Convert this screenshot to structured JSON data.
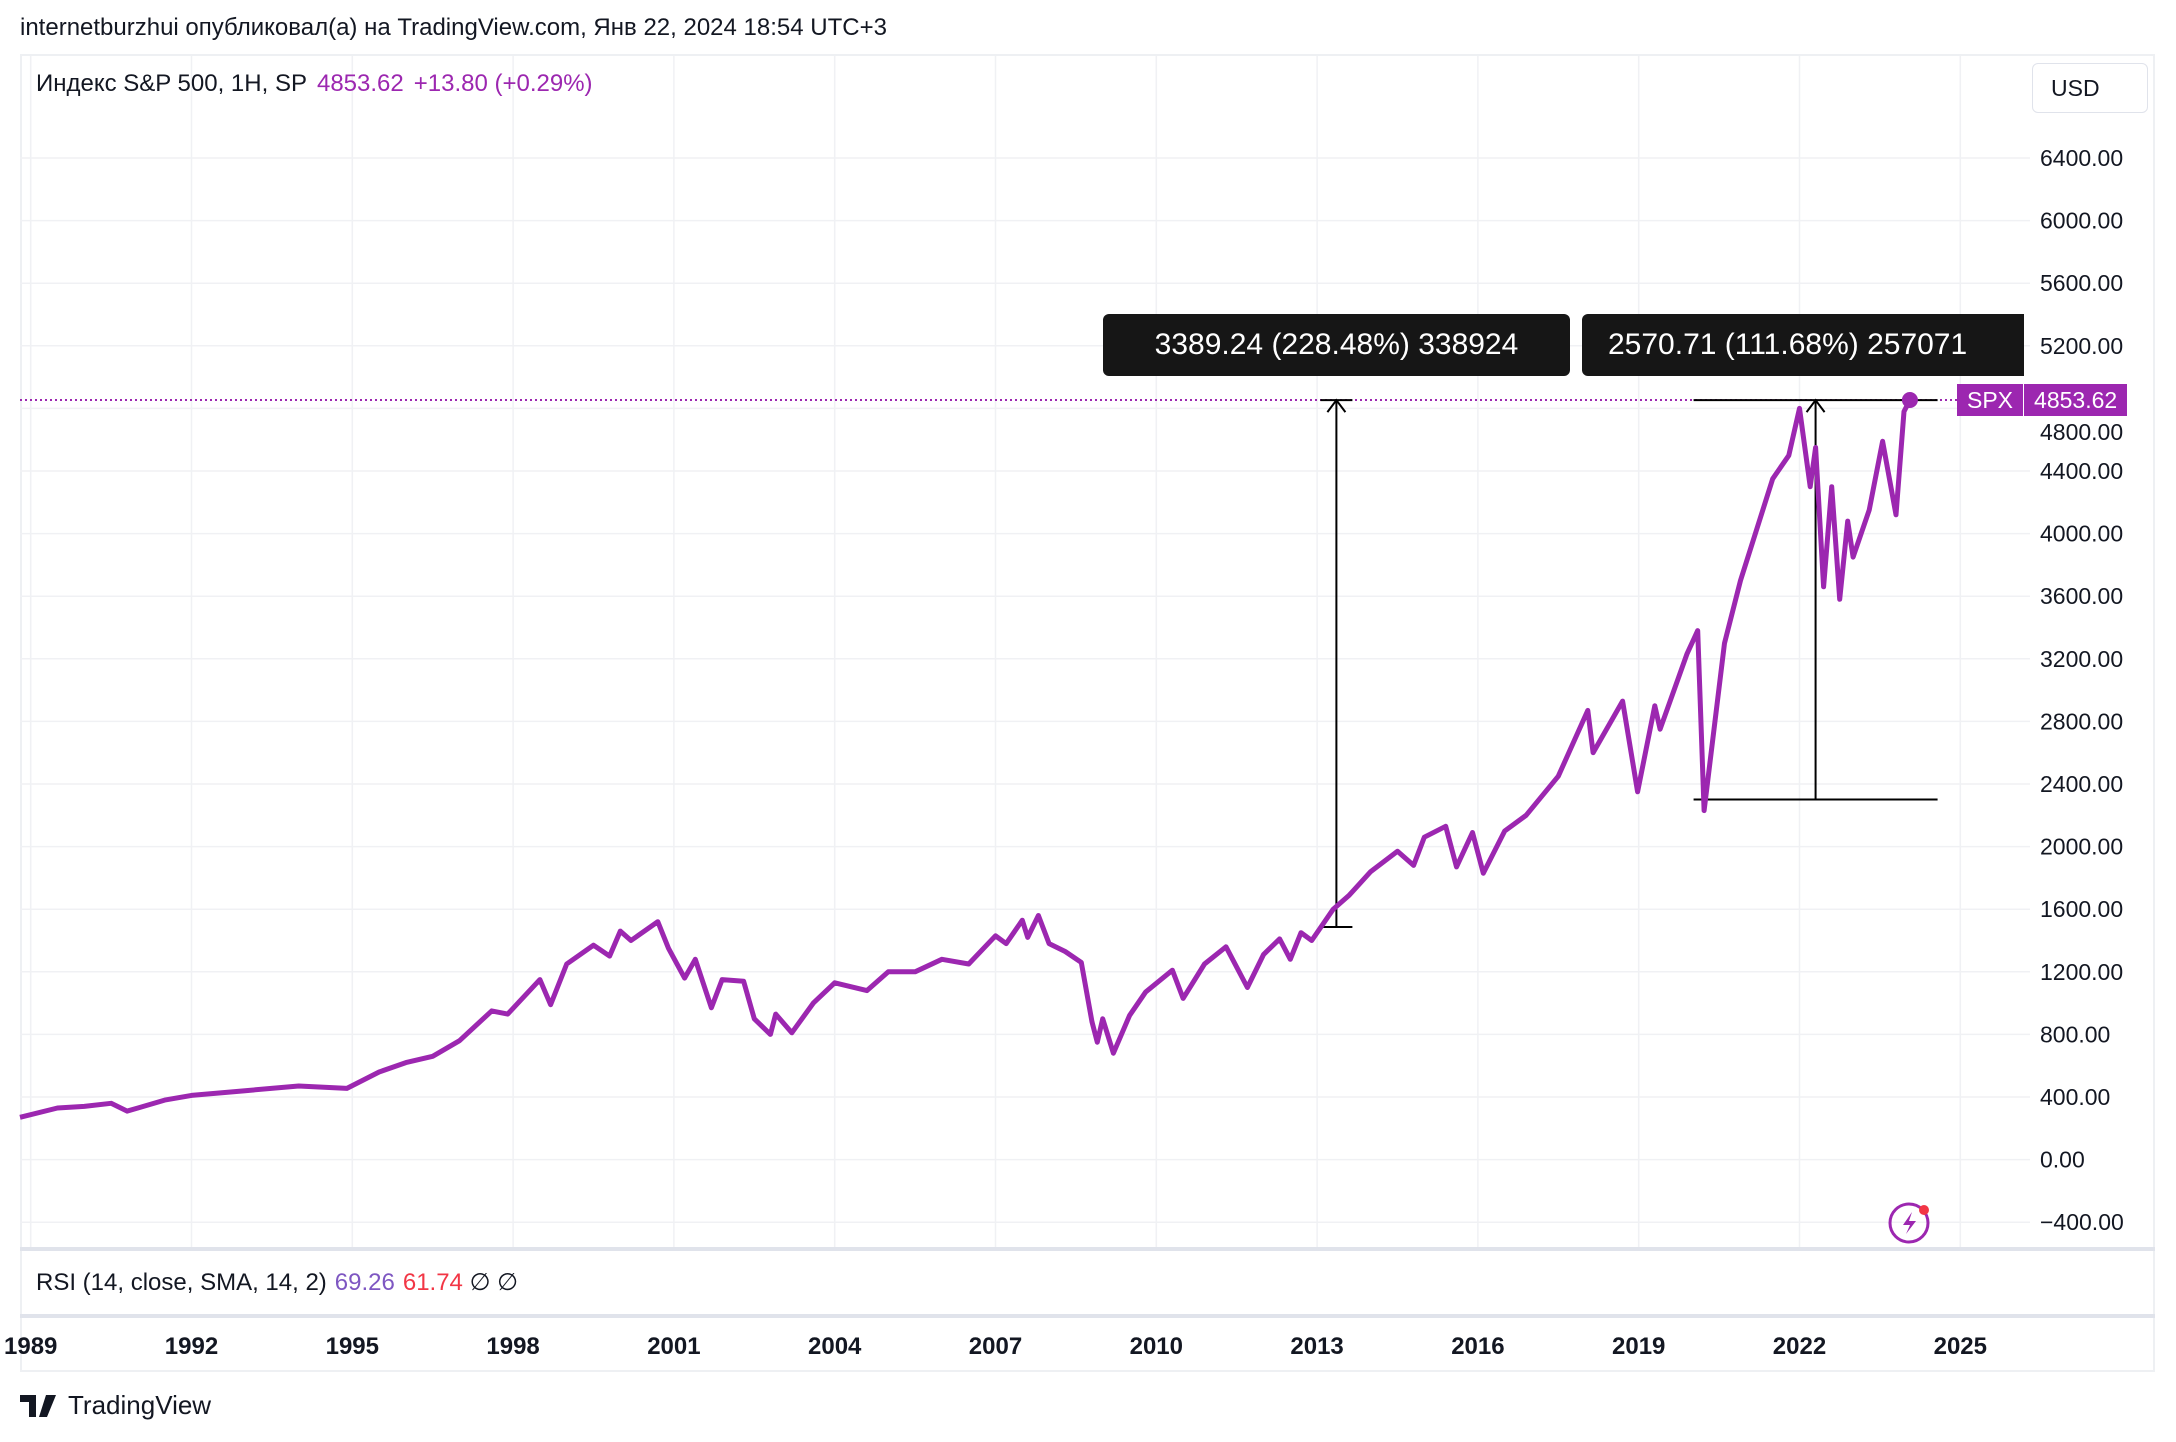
{
  "header": {
    "published": "internetburzhui опубликовал(а) на TradingView.com, Янв 22, 2024 18:54 UTC+3"
  },
  "legend": {
    "symbol": "Индекс S&P 500, 1H, SP",
    "price": "4853.62",
    "change": "+13.80 (+0.29%)"
  },
  "currency_button": "USD",
  "price_label": {
    "ticker": "SPX",
    "value": "4853.62"
  },
  "measures": [
    {
      "label": "3389.24 (228.48%) 338924"
    },
    {
      "label": "2570.71 (111.68%) 257071"
    }
  ],
  "rsi": {
    "title": "RSI (14, close, SMA, 14, 2)",
    "value": "69.26",
    "sma": "61.74",
    "n1": "∅",
    "n2": "∅"
  },
  "footer": {
    "brand": "TradingView"
  },
  "colors": {
    "series": "#9c27b0",
    "rsi": "#7e57c2",
    "rsi_sma": "#f23645"
  },
  "chart_data": {
    "type": "line",
    "title": "Индекс S&P 500, 1H, SP",
    "xlabel": "",
    "ylabel": "USD",
    "ylim": [
      -400,
      6400
    ],
    "y_ticks": [
      "6400.00",
      "6000.00",
      "5600.00",
      "5200.00",
      "4800.00",
      "4400.00",
      "4000.00",
      "3600.00",
      "3200.00",
      "2800.00",
      "2400.00",
      "2000.00",
      "1600.00",
      "1200.00",
      "800.00",
      "400.00",
      "0.00",
      "−400.00"
    ],
    "x_ticks": [
      "1989",
      "1992",
      "1995",
      "1998",
      "2001",
      "2004",
      "2007",
      "2010",
      "2013",
      "2016",
      "2019",
      "2022",
      "2025"
    ],
    "grid": true,
    "series": [
      {
        "name": "SPX",
        "x": [
          1988.8,
          1989.5,
          1990,
          1990.5,
          1990.8,
          1991,
          1991.5,
          1992,
          1993,
          1994,
          1994.9,
          1995.5,
          1996,
          1996.5,
          1997,
          1997.6,
          1997.9,
          1998.5,
          1998.7,
          1999,
          1999.5,
          1999.8,
          2000,
          2000.2,
          2000.7,
          2000.9,
          2001.2,
          2001.4,
          2001.7,
          2001.9,
          2002.3,
          2002.5,
          2002.8,
          2002.9,
          2003.2,
          2003.6,
          2004,
          2004.6,
          2005,
          2005.5,
          2006,
          2006.5,
          2007,
          2007.2,
          2007.5,
          2007.6,
          2007.8,
          2008,
          2008.3,
          2008.6,
          2008.8,
          2008.9,
          2009,
          2009.2,
          2009.5,
          2009.8,
          2010.3,
          2010.5,
          2010.9,
          2011.3,
          2011.7,
          2012,
          2012.3,
          2012.5,
          2012.7,
          2012.9,
          2013.3,
          2013.6,
          2014,
          2014.5,
          2014.8,
          2015,
          2015.4,
          2015.6,
          2015.9,
          2016.1,
          2016.5,
          2016.9,
          2017.5,
          2018.05,
          2018.15,
          2018.7,
          2018.98,
          2019.3,
          2019.4,
          2019.9,
          2020.1,
          2020.22,
          2020.6,
          2020.9,
          2021.5,
          2021.8,
          2022,
          2022.2,
          2022.3,
          2022.45,
          2022.6,
          2022.75,
          2022.9,
          2023,
          2023.3,
          2023.55,
          2023.8,
          2023.95,
          2024.06
        ],
        "y": [
          270,
          330,
          340,
          360,
          310,
          330,
          380,
          410,
          440,
          470,
          455,
          560,
          620,
          660,
          760,
          950,
          930,
          1150,
          990,
          1250,
          1370,
          1300,
          1460,
          1400,
          1520,
          1350,
          1160,
          1280,
          970,
          1150,
          1140,
          900,
          800,
          930,
          810,
          1000,
          1130,
          1080,
          1200,
          1200,
          1280,
          1250,
          1430,
          1380,
          1530,
          1420,
          1560,
          1380,
          1330,
          1260,
          880,
          750,
          900,
          680,
          920,
          1070,
          1210,
          1030,
          1250,
          1360,
          1100,
          1310,
          1410,
          1280,
          1450,
          1400,
          1600,
          1690,
          1840,
          1970,
          1880,
          2060,
          2130,
          1870,
          2090,
          1830,
          2100,
          2200,
          2450,
          2870,
          2600,
          2930,
          2350,
          2900,
          2750,
          3230,
          3380,
          2230,
          3300,
          3700,
          4350,
          4500,
          4800,
          4300,
          4550,
          3660,
          4300,
          3580,
          4080,
          3850,
          4150,
          4590,
          4120,
          4780,
          4853.62
        ]
      }
    ],
    "last_value": 4853.62,
    "annotations": [
      {
        "type": "measure",
        "from": [
          2013.36,
          1486
        ],
        "to": [
          2013.36,
          4853
        ]
      },
      {
        "type": "measure",
        "from": [
          2022.3,
          2301
        ],
        "to": [
          2022.3,
          4853
        ]
      }
    ]
  }
}
